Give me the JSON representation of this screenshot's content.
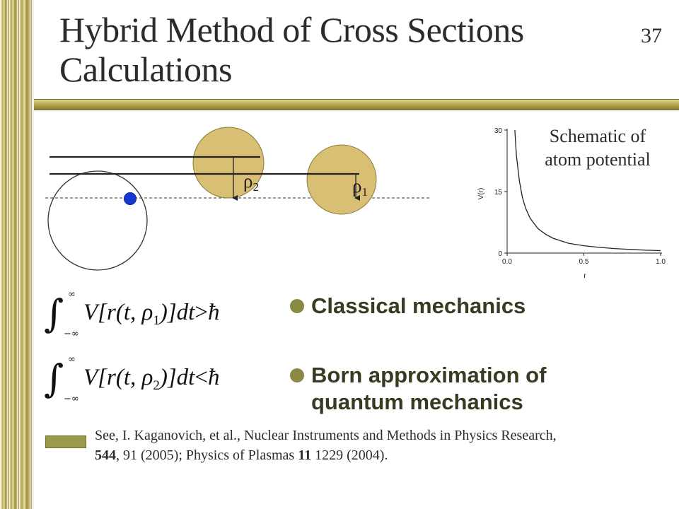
{
  "slide": {
    "title_line1": "Hybrid Method of Cross Sections",
    "title_line2": "Calculations",
    "number": "37"
  },
  "diagram": {
    "label_rho2": "ρ",
    "label_rho2_sub": "2",
    "label_rho1": "ρ",
    "label_rho1_sub": "1",
    "atom_fill": "#d9bf74",
    "nucleus_color": "#1537d6"
  },
  "plot": {
    "caption_line1": "Schematic of",
    "caption_line2": "atom potential",
    "ylabel": "V(r)",
    "xlabel": "r",
    "y_ticks": [
      "0",
      "15",
      "30"
    ],
    "x_ticks": [
      "0.0",
      "0.5",
      "1.0"
    ]
  },
  "chart_data": {
    "type": "line",
    "title": "",
    "xlabel": "r",
    "ylabel": "V(r)",
    "xlim": [
      0,
      1.0
    ],
    "ylim": [
      0,
      30
    ],
    "series": [
      {
        "x": [
          0.05,
          0.06,
          0.08,
          0.1,
          0.12,
          0.15,
          0.2,
          0.25,
          0.3,
          0.4,
          0.5,
          0.6,
          0.7,
          0.8,
          0.9,
          1.0
        ],
        "values": [
          30,
          24,
          17.5,
          13.5,
          11,
          8.5,
          6,
          4.6,
          3.6,
          2.4,
          1.8,
          1.4,
          1.1,
          0.9,
          0.7,
          0.6
        ]
      }
    ]
  },
  "equations": {
    "classical": {
      "rho_sub": "1",
      "relation": ">"
    },
    "born": {
      "rho_sub": "2",
      "relation": "<"
    },
    "integral_upper": "∞",
    "integral_lower": "−∞",
    "body_prefix": "V[r(t, ρ",
    "body_suffix": ")]dt",
    "hbar": "ħ"
  },
  "bullets": {
    "classical": "Classical mechanics",
    "born_line1": "Born approximation of",
    "born_line2": "quantum mechanics"
  },
  "reference": {
    "line1": "See, I. Kaganovich, et al., Nuclear Instruments and Methods in Physics Research,",
    "vol1": "544",
    "rest1": ", 91 (2005);  Physics of Plasmas ",
    "vol2": "11",
    "rest2": " 1229 (2004)."
  }
}
